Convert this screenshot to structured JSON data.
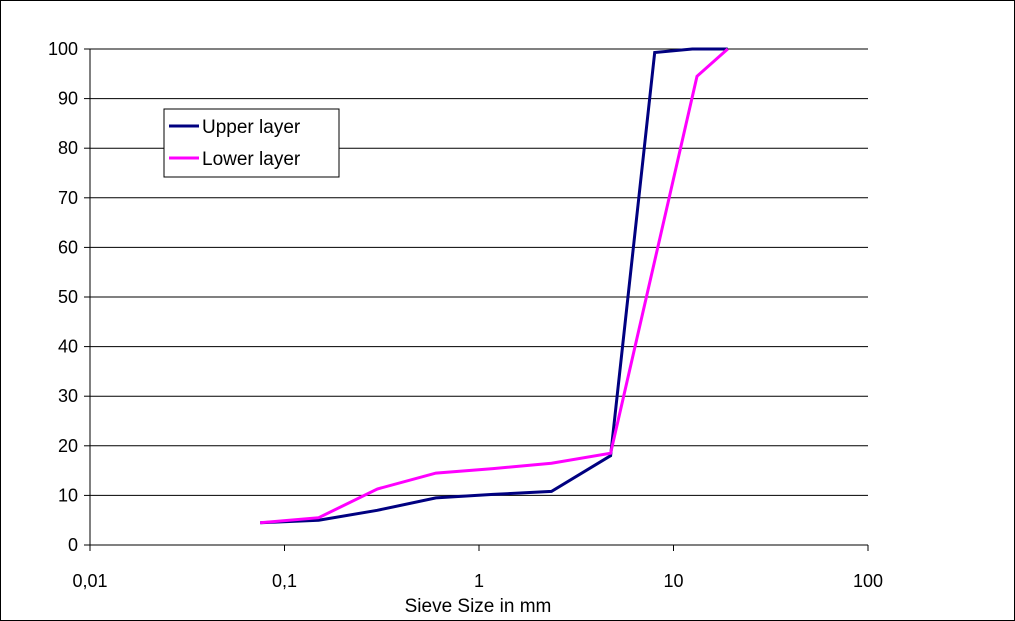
{
  "chart_data": {
    "type": "line",
    "title": "",
    "xlabel": "Sieve Size in mm",
    "ylabel": "",
    "xscale": "log",
    "xlim": [
      0.01,
      100
    ],
    "ylim": [
      0,
      100
    ],
    "x_ticks": [
      0.01,
      0.1,
      1,
      10,
      100
    ],
    "x_tick_labels": [
      "0,01",
      "0,1",
      "1",
      "10",
      "100"
    ],
    "y_ticks": [
      0,
      10,
      20,
      30,
      40,
      50,
      60,
      70,
      80,
      90,
      100
    ],
    "y_tick_labels": [
      "0",
      "10",
      "20",
      "30",
      "40",
      "50",
      "60",
      "70",
      "80",
      "90",
      "100"
    ],
    "grid": "horizontal",
    "legend_position": "top-left",
    "series": [
      {
        "name": "Upper layer",
        "color": "#000080",
        "points": [
          [
            0.075,
            4.5
          ],
          [
            0.15,
            5.0
          ],
          [
            0.3,
            7.0
          ],
          [
            0.6,
            9.5
          ],
          [
            1.18,
            10.2
          ],
          [
            2.36,
            10.8
          ],
          [
            4.75,
            18.0
          ],
          [
            8.0,
            99.3
          ],
          [
            12.5,
            100
          ],
          [
            19.0,
            100
          ]
        ]
      },
      {
        "name": "Lower layer",
        "color": "#ff00ff",
        "points": [
          [
            0.075,
            4.5
          ],
          [
            0.15,
            5.5
          ],
          [
            0.3,
            11.3
          ],
          [
            0.6,
            14.5
          ],
          [
            1.18,
            15.4
          ],
          [
            2.36,
            16.5
          ],
          [
            4.75,
            18.5
          ],
          [
            13.2,
            94.5
          ],
          [
            19.0,
            100
          ]
        ]
      }
    ]
  }
}
